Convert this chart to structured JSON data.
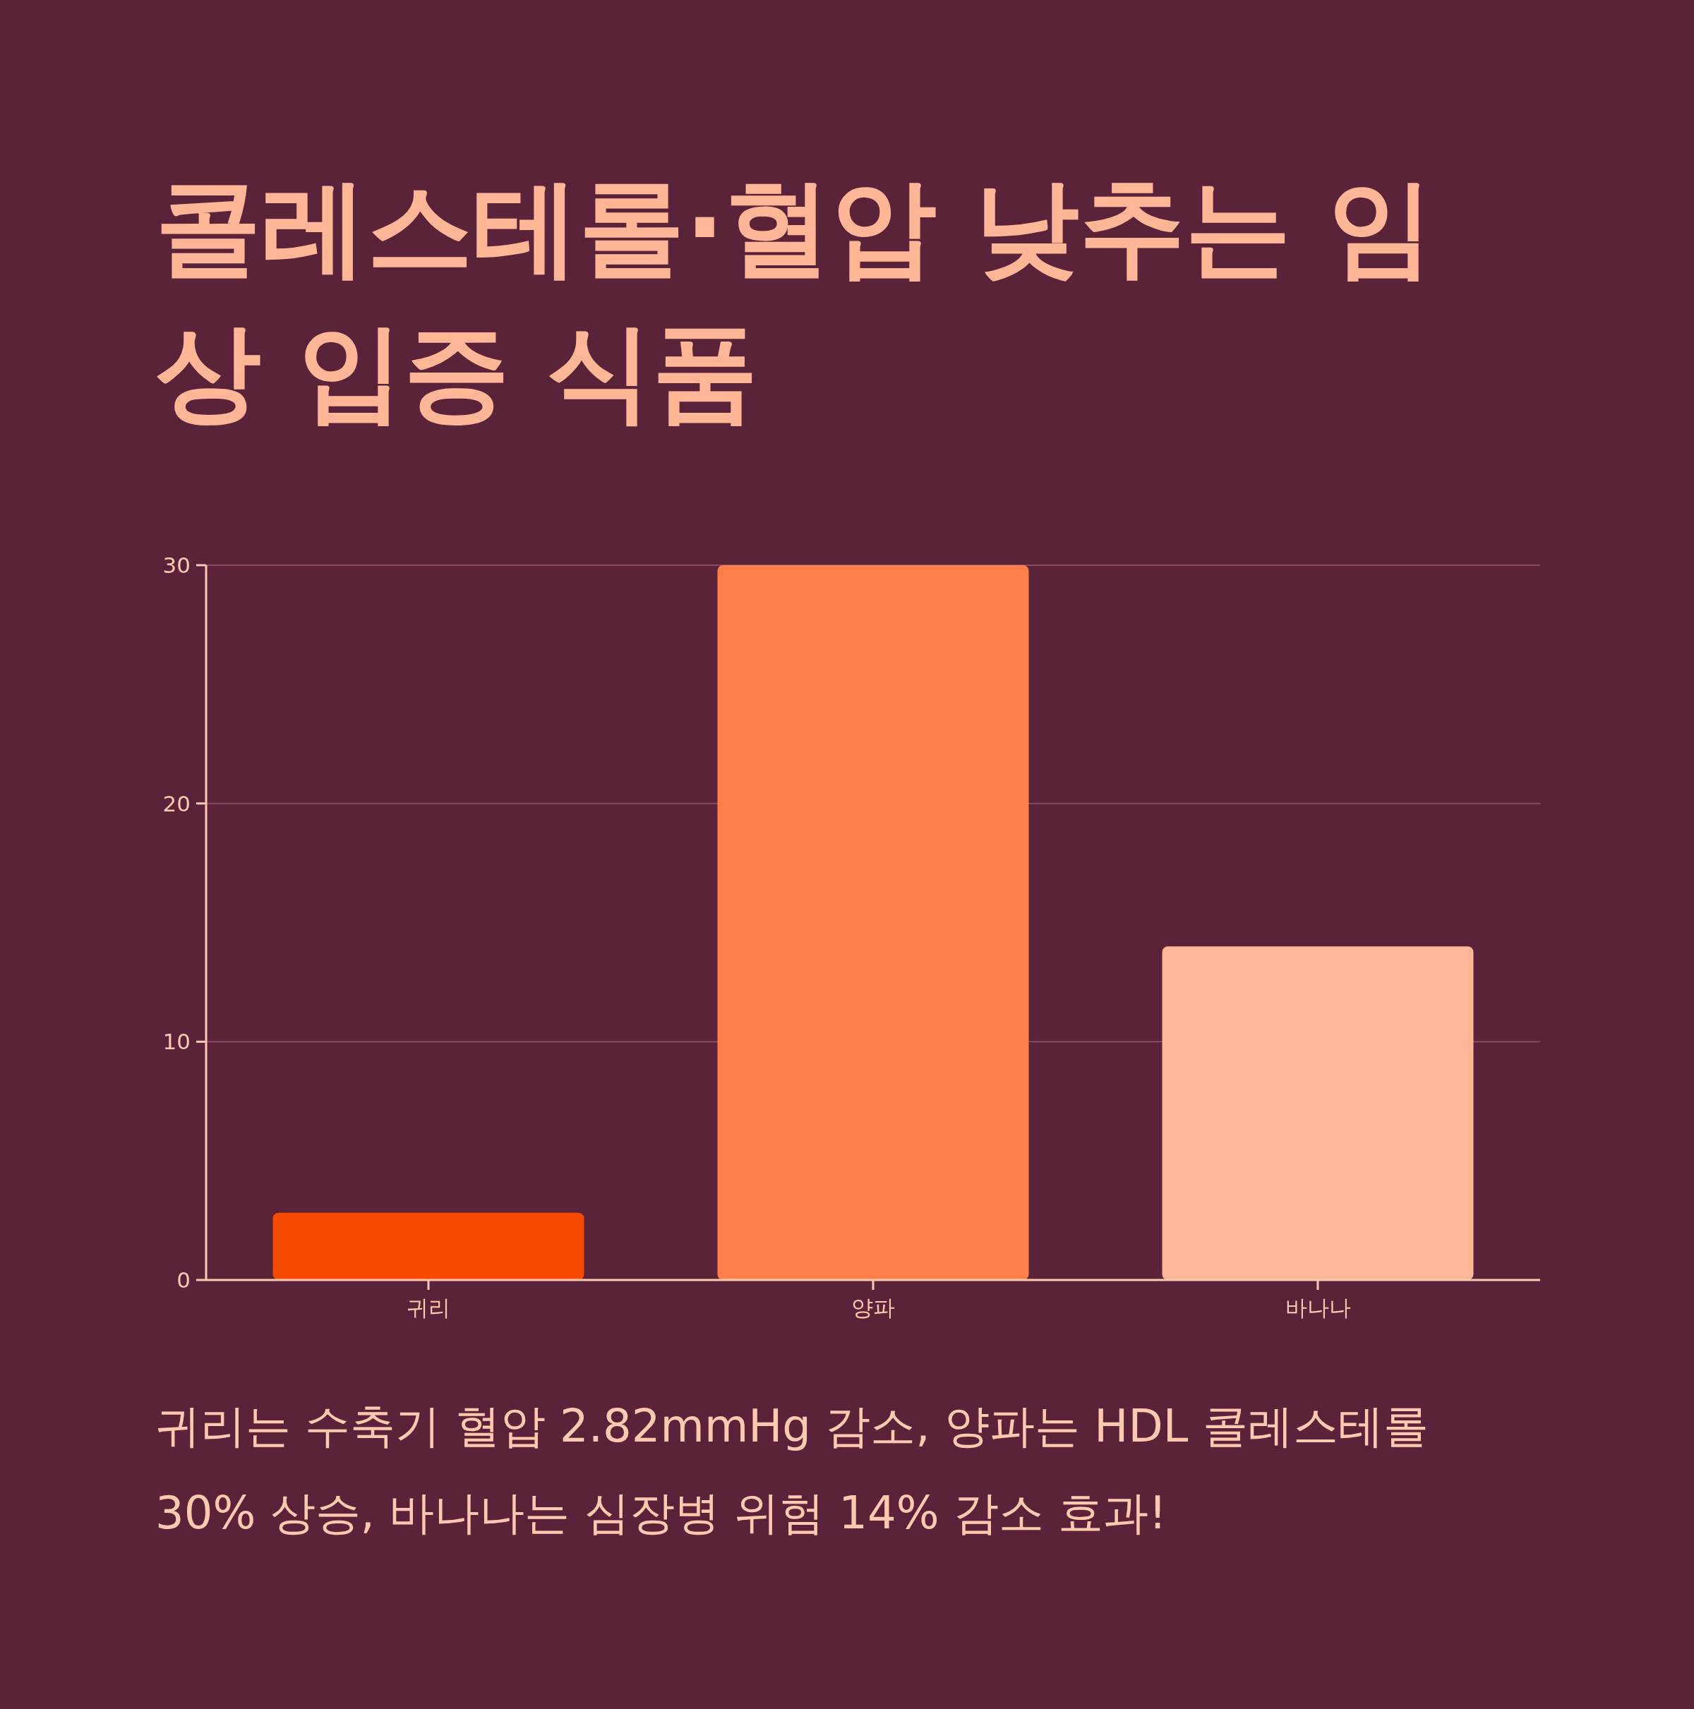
{
  "chart_data": {
    "type": "bar",
    "title": "콜레스테롤·혈압 낮추는 임상 입증 식품",
    "categories": [
      "귀리",
      "양파",
      "바나나"
    ],
    "values": [
      2.82,
      30,
      14
    ],
    "colors": [
      "#f54a00",
      "#ff7f4a",
      "#ffb697"
    ],
    "ylim": [
      0,
      30
    ],
    "yticks": [
      0,
      10,
      20,
      30
    ],
    "grid": "y",
    "annotations": [
      "귀리는 수축기 혈압 2.82mmHg 감소, 양파는 HDL 콜레스테롤 30% 상승, 바나나는 심장병 위험 14% 감소 효과!"
    ]
  }
}
